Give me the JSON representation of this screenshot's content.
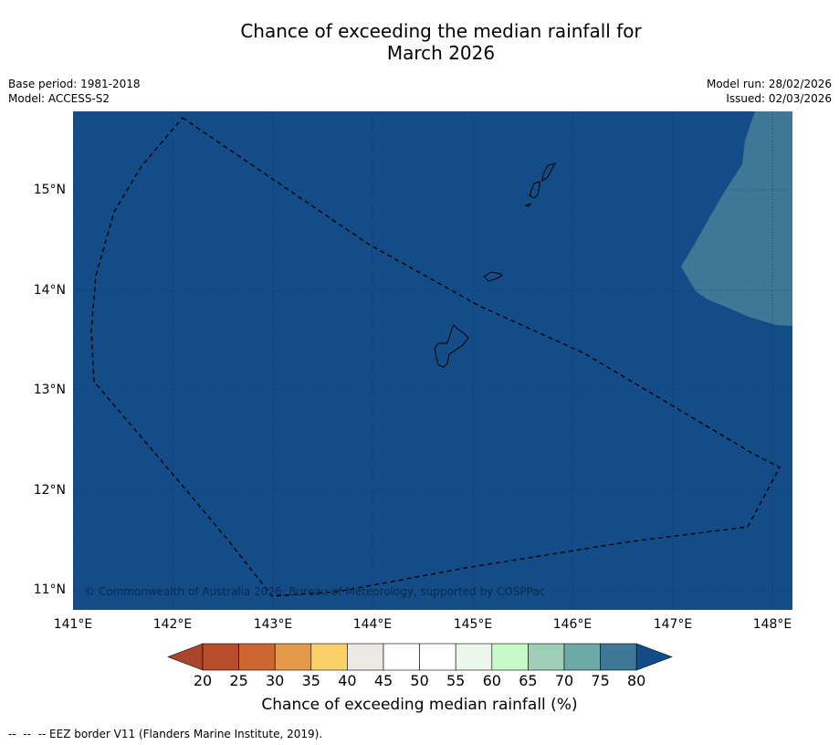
{
  "header": {
    "title_line1": "Chance of exceeding the median rainfall for",
    "title_line2": "March 2026",
    "base_period": "Base period: 1981-2018",
    "model": "Model: ACCESS-S2",
    "model_run": "Model run: 28/02/2026",
    "issued": "Issued: 02/03/2026"
  },
  "map": {
    "copyright": "© Commonwealth of Australia 2026, Bureau of Meteorology, supported by COSPPac",
    "background_color": "#144c88",
    "highlight_region_color": "#3f7796",
    "lat_labels": [
      "15°N",
      "14°N",
      "13°N",
      "12°N",
      "11°N"
    ],
    "lon_labels": [
      "141°E",
      "142°E",
      "143°E",
      "144°E",
      "145°E",
      "146°E",
      "147°E",
      "148°E"
    ]
  },
  "colorbar": {
    "colors": [
      "#a9452a",
      "#b84d2b",
      "#cd6632",
      "#e39a4a",
      "#fdd16a",
      "#ece8e4",
      "#ffffff",
      "#ffffff",
      "#eaf7ea",
      "#c8f9c8",
      "#9ecfb6",
      "#6ea9a8",
      "#3f7796",
      "#144c88"
    ],
    "ticks": [
      "20",
      "25",
      "30",
      "35",
      "40",
      "45",
      "50",
      "55",
      "60",
      "65",
      "70",
      "75",
      "80"
    ],
    "label": "Chance of exceeding median rainfall (%)"
  },
  "footnote": "--  --  -- EEZ border V11 (Flanders Marine Institute, 2019)."
}
